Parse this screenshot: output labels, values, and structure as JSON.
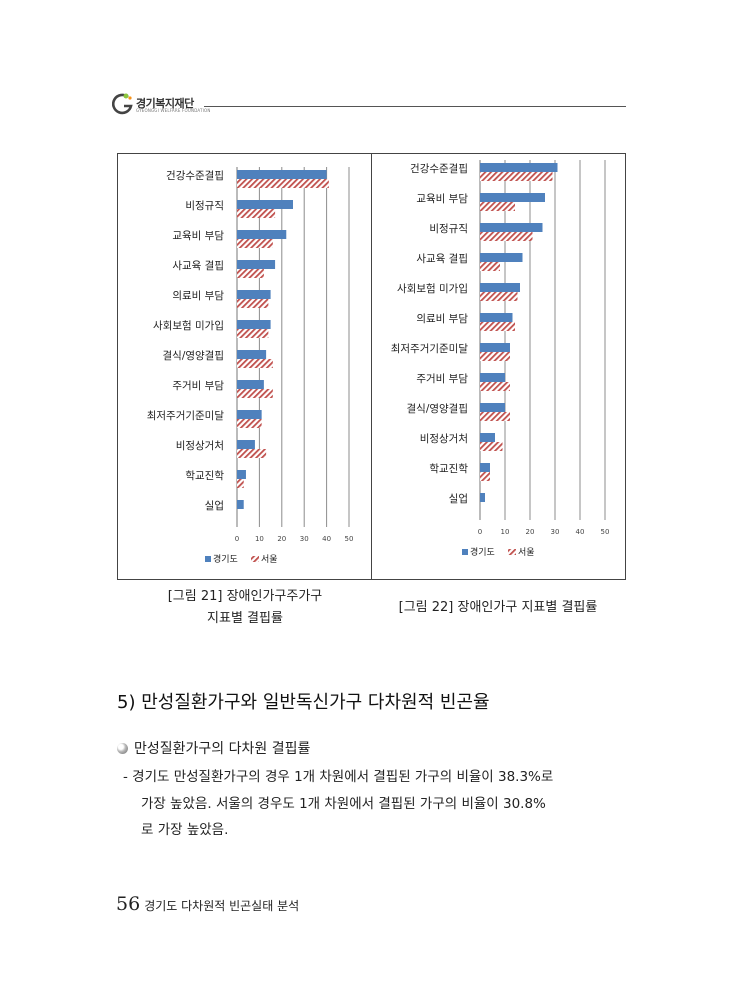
{
  "header": {
    "org_name": "경기복지재단",
    "org_subtitle": "GYEONGGI WELFARE FOUNDATION"
  },
  "chart_data": [
    {
      "type": "bar",
      "orientation": "horizontal",
      "categories": [
        "건강수준결핍",
        "비정규직",
        "교육비 부담",
        "사교육 결핍",
        "의료비 부담",
        "사회보험 미가입",
        "결식/영양결핍",
        "주거비 부담",
        "최저주거기준미달",
        "비정상거처",
        "학교진학",
        "실업"
      ],
      "series": [
        {
          "name": "경기도",
          "values": [
            40,
            25,
            22,
            17,
            15,
            15,
            13,
            12,
            11,
            8,
            4,
            3
          ]
        },
        {
          "name": "서울",
          "values": [
            41,
            17,
            16,
            12,
            14,
            14,
            16,
            16,
            11,
            13,
            3,
            0
          ]
        }
      ],
      "xlim": [
        0,
        50
      ],
      "xticks": [
        0,
        10,
        20,
        30,
        40,
        50
      ],
      "grid": true,
      "legend": "bottom"
    },
    {
      "type": "bar",
      "orientation": "horizontal",
      "categories": [
        "건강수준결핍",
        "교육비 부담",
        "비정규직",
        "사교육 결핍",
        "사회보험 미가입",
        "의료비 부담",
        "최저주거기준미달",
        "주거비 부담",
        "결식/영양결핍",
        "비정상거처",
        "학교진학",
        "실업"
      ],
      "series": [
        {
          "name": "경기도",
          "values": [
            31,
            26,
            25,
            17,
            16,
            13,
            12,
            10,
            10,
            6,
            4,
            2
          ]
        },
        {
          "name": "서울",
          "values": [
            29,
            14,
            21,
            8,
            15,
            14,
            12,
            12,
            12,
            9,
            4,
            0
          ]
        }
      ],
      "xlim": [
        0,
        50
      ],
      "xticks": [
        0,
        10,
        20,
        30,
        40,
        50
      ],
      "grid": true,
      "legend": "bottom"
    }
  ],
  "captions": {
    "fig21_line1": "[그림 21] 장애인가구주가구",
    "fig21_line2": "지표별 결핍률",
    "fig22": "[그림 22] 장애인가구 지표별 결핍률"
  },
  "section": {
    "title": "5) 만성질환가구와 일반독신가구 다차원적 빈곤율"
  },
  "bullet": {
    "text": "만성질환가구의 다차원 결핍률"
  },
  "paragraph": {
    "line1": "- 경기도 만성질환가구의 경우 1개 차원에서 결핍된 가구의 비율이 38.3%로",
    "line2": "가장 높았음. 서울의 경우도 1개 차원에서 결핍된 가구의 비율이 30.8%",
    "line3": "로 가장 높았음."
  },
  "footer": {
    "page_number": "56",
    "doc_title": "경기도 다차원적 빈곤실태 분석"
  },
  "colors": {
    "gyeonggi": "#4f81bd",
    "seoul": "#c0504d",
    "grid": "#8c8c8c"
  }
}
